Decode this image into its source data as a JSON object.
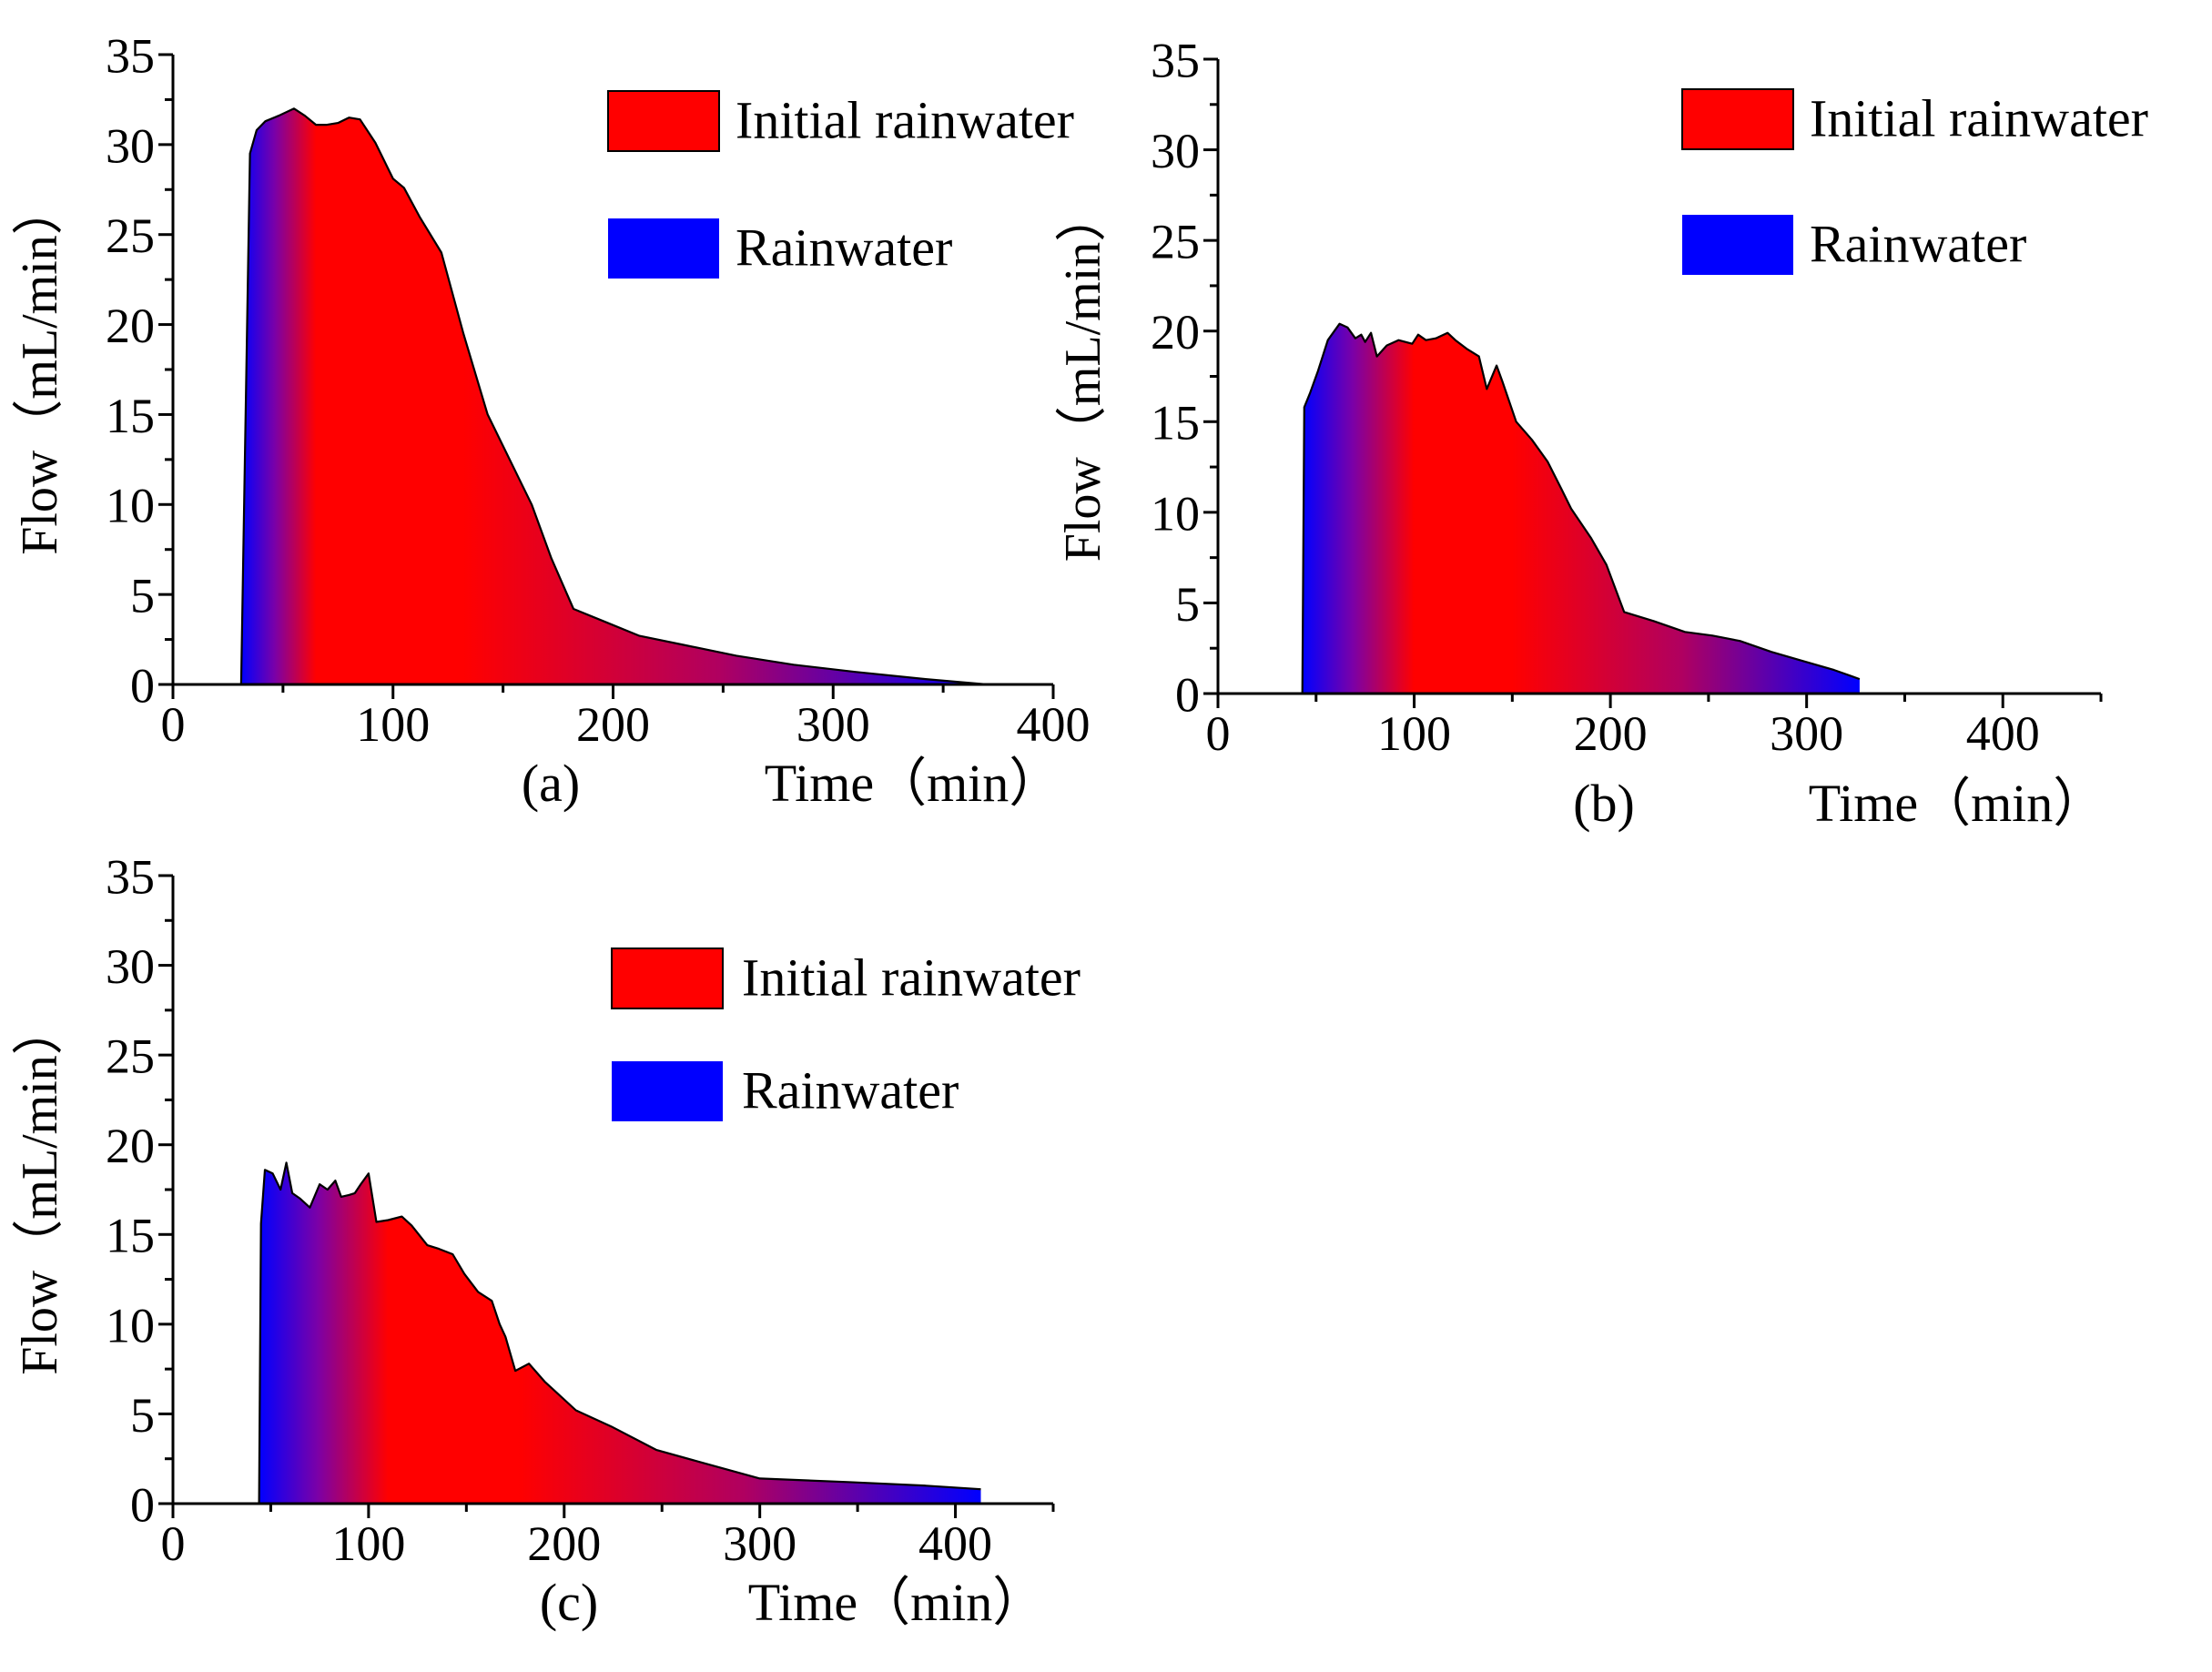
{
  "colors": {
    "initial": "#ff0000",
    "rain": "#0000ff",
    "axis": "#000000"
  },
  "chart_data": [
    {
      "panel": "(a)",
      "type": "area",
      "xlabel": "Time（min）",
      "ylabel": "Flow（mL/min）",
      "xlim": [
        0,
        400
      ],
      "ylim": [
        0,
        35
      ],
      "xticks": [
        "0",
        "100",
        "200",
        "300",
        "400"
      ],
      "yticks": [
        "0",
        "5",
        "10",
        "15",
        "20",
        "25",
        "30",
        "35"
      ],
      "legend": [
        {
          "label": "Initial rainwater",
          "color": "#ff0000"
        },
        {
          "label": "Rainwater",
          "color": "#0000ff"
        }
      ],
      "gradient": {
        "start": 31,
        "peak": 65,
        "end": 370
      },
      "x": [
        31,
        35,
        38,
        42,
        48,
        55,
        60,
        65,
        70,
        75,
        80,
        85,
        92,
        100,
        105,
        112,
        122,
        132,
        143,
        155,
        163,
        172,
        182,
        196,
        212,
        232,
        256,
        282,
        310,
        342,
        370
      ],
      "y": [
        0,
        29.5,
        30.8,
        31.3,
        31.6,
        32.0,
        31.6,
        31.1,
        31.1,
        31.2,
        31.5,
        31.4,
        30.1,
        28.1,
        27.6,
        26.0,
        24.0,
        19.5,
        15.0,
        12.0,
        10.0,
        7.0,
        4.2,
        3.5,
        2.7,
        2.2,
        1.6,
        1.1,
        0.7,
        0.3,
        0
      ]
    },
    {
      "panel": "(b)",
      "type": "area",
      "xlabel": "Time（min）",
      "ylabel": "Flow（mL/min）",
      "xlim": [
        0,
        450
      ],
      "ylim": [
        0,
        35
      ],
      "xticks": [
        "0",
        "100",
        "200",
        "300",
        "400"
      ],
      "yticks": [
        "0",
        "5",
        "10",
        "15",
        "20",
        "25",
        "30",
        "35"
      ],
      "legend": [
        {
          "label": "Initial rainwater",
          "color": "#ff0000"
        },
        {
          "label": "Rainwater",
          "color": "#0000ff"
        }
      ],
      "gradient": {
        "start": 43,
        "peak": 100,
        "end": 327
      },
      "x": [
        43,
        44,
        47,
        51,
        56,
        62,
        66,
        70,
        73,
        75,
        78,
        81,
        86,
        92,
        99,
        102,
        106,
        111,
        117,
        121,
        127,
        133,
        137,
        142,
        145,
        152,
        160,
        168,
        175,
        180,
        190,
        198,
        207,
        222,
        238,
        252,
        266,
        282,
        298,
        314,
        327
      ],
      "y": [
        0,
        15.8,
        16.6,
        17.8,
        19.5,
        20.4,
        20.2,
        19.6,
        19.8,
        19.4,
        19.9,
        18.6,
        19.2,
        19.5,
        19.3,
        19.8,
        19.5,
        19.6,
        19.9,
        19.5,
        19.0,
        18.6,
        16.8,
        18.1,
        17.2,
        15.0,
        14.0,
        12.8,
        11.3,
        10.2,
        8.6,
        7.1,
        4.5,
        4.0,
        3.4,
        3.2,
        2.9,
        2.3,
        1.8,
        1.3,
        0.8
      ]
    },
    {
      "panel": "(c)",
      "type": "area",
      "xlabel": "Time（min）",
      "ylabel": "Flow（mL/min）",
      "xlim": [
        0,
        450
      ],
      "ylim": [
        0,
        35
      ],
      "xticks": [
        "0",
        "100",
        "200",
        "300",
        "400"
      ],
      "yticks": [
        "0",
        "5",
        "10",
        "15",
        "20",
        "25",
        "30",
        "35"
      ],
      "legend": [
        {
          "label": "Initial rainwater",
          "color": "#ff0000"
        },
        {
          "label": "Rainwater",
          "color": "#0000ff"
        }
      ],
      "gradient": {
        "start": 44,
        "peak": 110,
        "end": 413
      },
      "x": [
        44,
        45,
        47,
        51,
        55,
        58,
        61,
        65,
        70,
        75,
        79,
        83,
        86,
        90,
        93,
        96,
        100,
        104,
        110,
        117,
        122,
        130,
        136,
        143,
        149,
        156,
        163,
        167,
        170,
        175,
        182,
        190,
        206,
        224,
        247,
        270,
        300,
        345,
        385,
        413
      ],
      "y": [
        0,
        15.6,
        18.6,
        18.4,
        17.5,
        19.0,
        17.3,
        17.0,
        16.5,
        17.8,
        17.5,
        18.0,
        17.1,
        17.2,
        17.3,
        17.8,
        18.4,
        15.7,
        15.8,
        16.0,
        15.5,
        14.4,
        14.2,
        13.9,
        12.8,
        11.8,
        11.3,
        10.0,
        9.3,
        7.4,
        7.8,
        6.8,
        5.2,
        4.3,
        3.0,
        2.3,
        1.4,
        1.2,
        1.0,
        0.8
      ]
    }
  ]
}
